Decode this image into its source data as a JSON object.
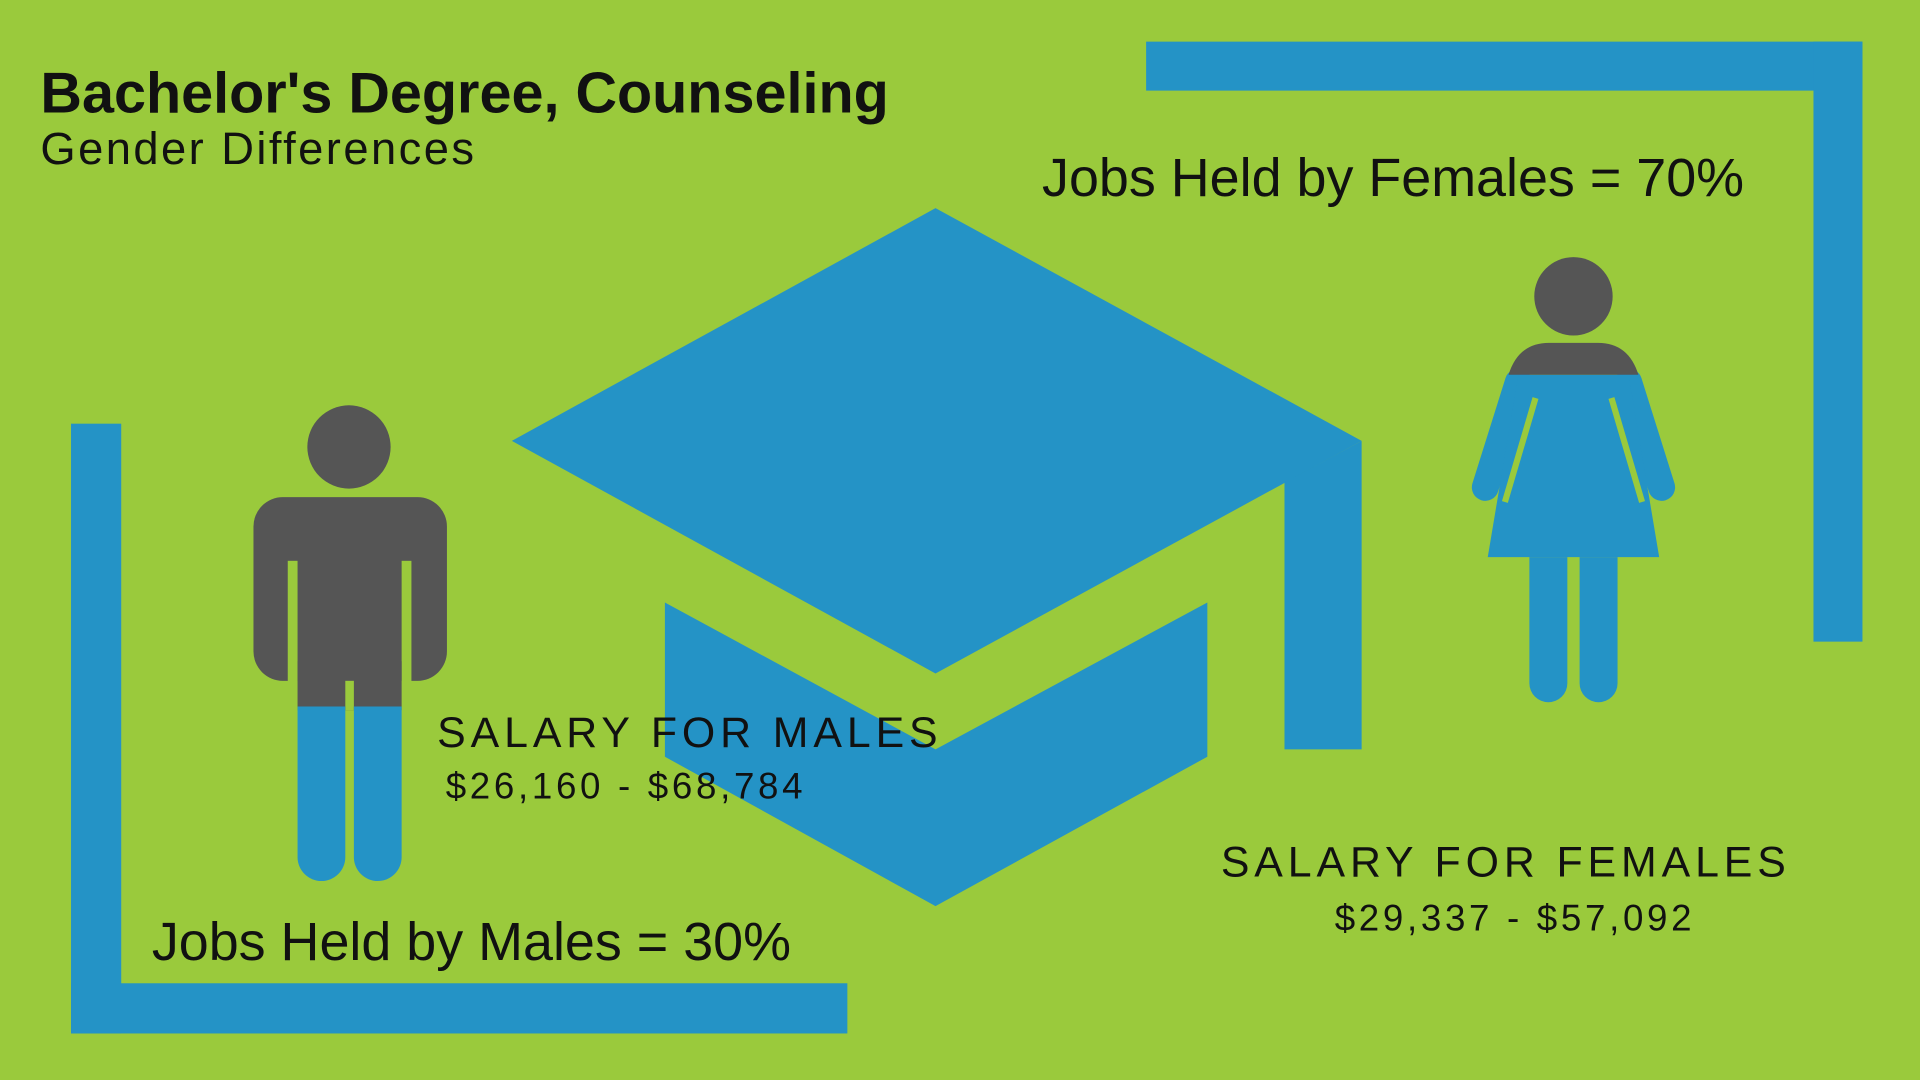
{
  "title": "Bachelor's Degree, Counseling",
  "subtitle": "Gender Differences",
  "females": {
    "jobs": "Jobs Held by Females = 70%",
    "salary_label": "SALARY FOR FEMALES",
    "salary_range": "$29,337 - $57,092"
  },
  "males": {
    "jobs": "Jobs Held by Males = 30%",
    "salary_label": "SALARY FOR MALES",
    "salary_range": "$26,160 - $68,784"
  }
}
